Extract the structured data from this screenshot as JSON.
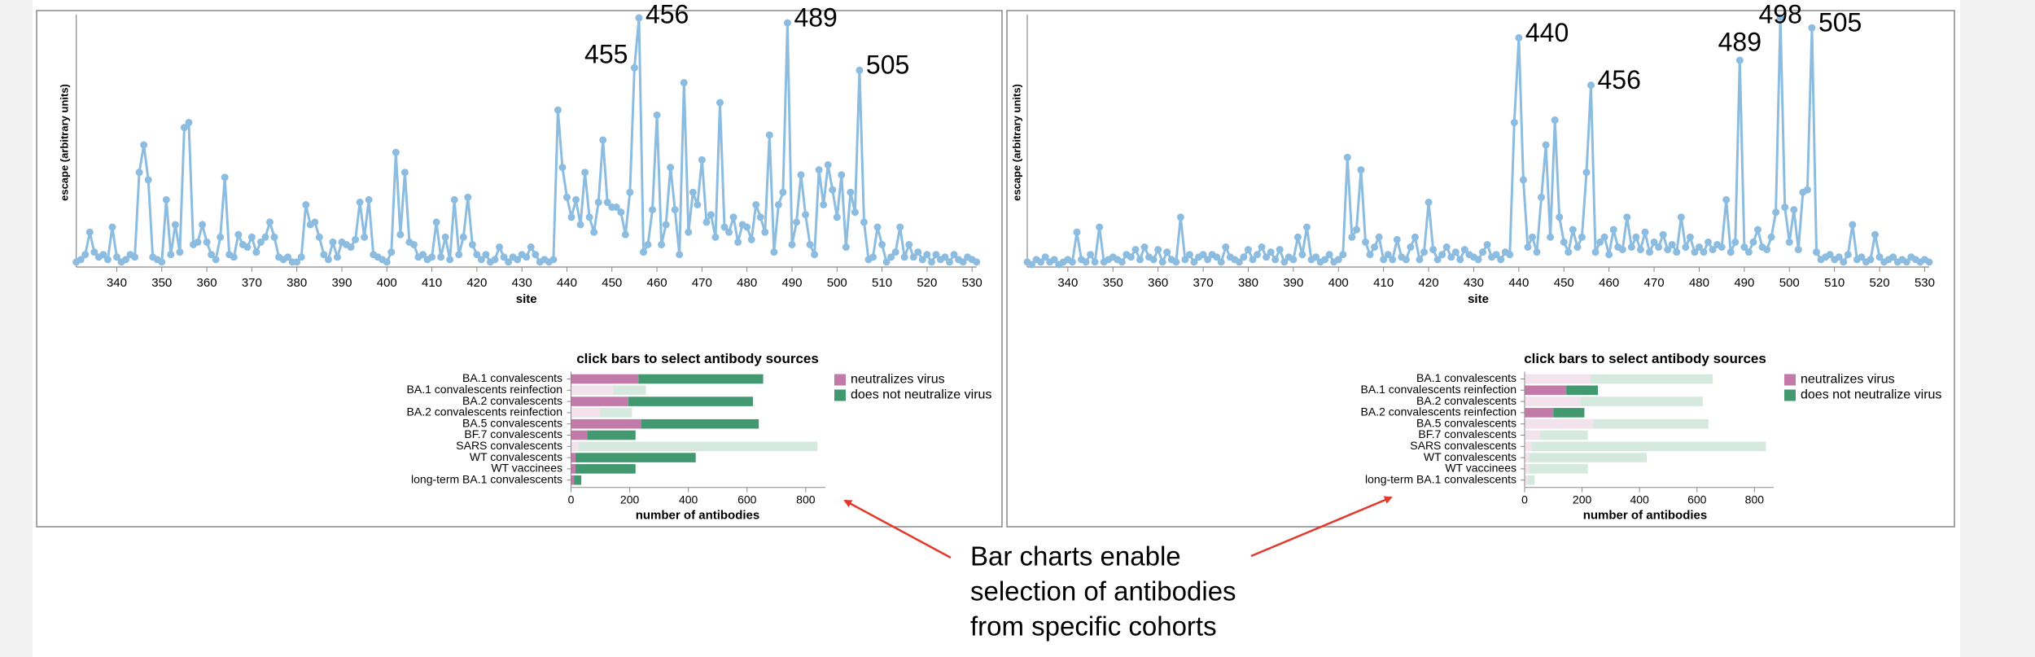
{
  "chart_data": [
    {
      "type": "line",
      "y_label": "escape (arbitrary units)",
      "x_label": "site",
      "color": "#8cbde0",
      "xlim": [
        331,
        531
      ],
      "ylim": [
        0,
        1
      ],
      "xticks": [
        340,
        350,
        360,
        370,
        380,
        390,
        400,
        410,
        420,
        430,
        440,
        450,
        460,
        470,
        480,
        490,
        500,
        510,
        520,
        530
      ],
      "peak_labels": [
        455,
        456,
        489,
        505
      ],
      "x": [
        331,
        332,
        333,
        334,
        335,
        336,
        337,
        338,
        339,
        340,
        341,
        342,
        343,
        344,
        345,
        346,
        347,
        348,
        349,
        350,
        351,
        352,
        353,
        354,
        355,
        356,
        357,
        358,
        359,
        360,
        361,
        362,
        363,
        364,
        365,
        366,
        367,
        368,
        369,
        370,
        371,
        372,
        373,
        374,
        375,
        376,
        377,
        378,
        379,
        380,
        381,
        382,
        383,
        384,
        385,
        386,
        387,
        388,
        389,
        390,
        391,
        392,
        393,
        394,
        395,
        396,
        397,
        398,
        399,
        400,
        401,
        402,
        403,
        404,
        405,
        406,
        407,
        408,
        409,
        410,
        411,
        412,
        413,
        414,
        415,
        416,
        417,
        418,
        419,
        420,
        421,
        422,
        423,
        424,
        425,
        426,
        427,
        428,
        429,
        430,
        431,
        432,
        433,
        434,
        435,
        436,
        437,
        438,
        439,
        440,
        441,
        442,
        443,
        444,
        445,
        446,
        447,
        448,
        449,
        450,
        451,
        452,
        453,
        454,
        455,
        456,
        457,
        458,
        459,
        460,
        461,
        462,
        463,
        464,
        465,
        466,
        467,
        468,
        469,
        470,
        471,
        472,
        473,
        474,
        475,
        476,
        477,
        478,
        479,
        480,
        481,
        482,
        483,
        484,
        485,
        486,
        487,
        488,
        489,
        490,
        491,
        492,
        493,
        494,
        495,
        496,
        497,
        498,
        499,
        500,
        501,
        502,
        503,
        504,
        505,
        506,
        507,
        508,
        509,
        510,
        511,
        512,
        513,
        514,
        515,
        516,
        517,
        518,
        519,
        520,
        521,
        522,
        523,
        524,
        525,
        526,
        527,
        528,
        529,
        530,
        531
      ],
      "values": [
        0.02,
        0.03,
        0.05,
        0.14,
        0.06,
        0.04,
        0.05,
        0.03,
        0.16,
        0.04,
        0.02,
        0.03,
        0.05,
        0.04,
        0.38,
        0.49,
        0.35,
        0.04,
        0.03,
        0.02,
        0.27,
        0.05,
        0.17,
        0.06,
        0.56,
        0.58,
        0.09,
        0.1,
        0.17,
        0.1,
        0.05,
        0.03,
        0.12,
        0.36,
        0.05,
        0.04,
        0.13,
        0.09,
        0.08,
        0.12,
        0.06,
        0.1,
        0.12,
        0.18,
        0.12,
        0.04,
        0.03,
        0.04,
        0.02,
        0.02,
        0.04,
        0.25,
        0.17,
        0.18,
        0.12,
        0.05,
        0.03,
        0.1,
        0.04,
        0.1,
        0.09,
        0.08,
        0.11,
        0.26,
        0.12,
        0.27,
        0.05,
        0.04,
        0.03,
        0.02,
        0.06,
        0.46,
        0.13,
        0.38,
        0.1,
        0.09,
        0.04,
        0.05,
        0.03,
        0.04,
        0.18,
        0.04,
        0.12,
        0.03,
        0.27,
        0.05,
        0.12,
        0.28,
        0.09,
        0.05,
        0.03,
        0.05,
        0.02,
        0.03,
        0.08,
        0.04,
        0.02,
        0.04,
        0.03,
        0.05,
        0.04,
        0.08,
        0.05,
        0.02,
        0.03,
        0.02,
        0.03,
        0.63,
        0.4,
        0.28,
        0.2,
        0.27,
        0.17,
        0.38,
        0.2,
        0.14,
        0.26,
        0.51,
        0.26,
        0.24,
        0.24,
        0.22,
        0.13,
        0.3,
        0.8,
        1.0,
        0.06,
        0.09,
        0.23,
        0.61,
        0.09,
        0.17,
        0.4,
        0.23,
        0.05,
        0.74,
        0.14,
        0.3,
        0.25,
        0.43,
        0.18,
        0.21,
        0.12,
        0.66,
        0.16,
        0.14,
        0.2,
        0.1,
        0.17,
        0.16,
        0.11,
        0.25,
        0.2,
        0.14,
        0.53,
        0.06,
        0.25,
        0.3,
        0.98,
        0.09,
        0.18,
        0.37,
        0.21,
        0.09,
        0.05,
        0.39,
        0.25,
        0.41,
        0.31,
        0.2,
        0.37,
        0.08,
        0.3,
        0.22,
        0.79,
        0.18,
        0.03,
        0.04,
        0.16,
        0.09,
        0.02,
        0.04,
        0.06,
        0.16,
        0.04,
        0.09,
        0.04,
        0.06,
        0.03,
        0.05,
        0.02,
        0.05,
        0.03,
        0.04,
        0.02,
        0.05,
        0.03,
        0.02,
        0.04,
        0.03,
        0.02
      ]
    },
    {
      "type": "hbar_stacked",
      "title": "click bars to select antibody sources",
      "x_label": "number of antibodies",
      "xlim": [
        0,
        867
      ],
      "xticks": [
        0,
        200,
        400,
        600,
        800
      ],
      "categories": [
        "BA.1 convalescents",
        "BA.1 convalescents reinfection",
        "BA.2 convalescents",
        "BA.2 convalescents reinfection",
        "BA.5 convalescents",
        "BF.7 convalescents",
        "SARS convalescents",
        "WT convalescents",
        "WT vaccinees",
        "long-term BA.1 convalescents"
      ],
      "selected": [
        true,
        false,
        true,
        false,
        true,
        true,
        false,
        true,
        true,
        true
      ],
      "series": [
        {
          "name": "neutralizes virus",
          "color": "#c27ba9",
          "values": [
            230,
            145,
            195,
            100,
            240,
            55,
            25,
            15,
            15,
            10
          ]
        },
        {
          "name": "does not neutralize virus",
          "color": "#42996f",
          "values": [
            425,
            110,
            425,
            108,
            400,
            165,
            815,
            410,
            205,
            25
          ]
        }
      ]
    },
    {
      "type": "line",
      "y_label": "escape (arbitrary units)",
      "x_label": "site",
      "color": "#8cbde0",
      "xlim": [
        331,
        531
      ],
      "ylim": [
        0,
        1
      ],
      "xticks": [
        340,
        350,
        360,
        370,
        380,
        390,
        400,
        410,
        420,
        430,
        440,
        450,
        460,
        470,
        480,
        490,
        500,
        510,
        520,
        530
      ],
      "peak_labels": [
        440,
        456,
        489,
        498,
        505
      ],
      "x": [
        331,
        332,
        333,
        334,
        335,
        336,
        337,
        338,
        339,
        340,
        341,
        342,
        343,
        344,
        345,
        346,
        347,
        348,
        349,
        350,
        351,
        352,
        353,
        354,
        355,
        356,
        357,
        358,
        359,
        360,
        361,
        362,
        363,
        364,
        365,
        366,
        367,
        368,
        369,
        370,
        371,
        372,
        373,
        374,
        375,
        376,
        377,
        378,
        379,
        380,
        381,
        382,
        383,
        384,
        385,
        386,
        387,
        388,
        389,
        390,
        391,
        392,
        393,
        394,
        395,
        396,
        397,
        398,
        399,
        400,
        401,
        402,
        403,
        404,
        405,
        406,
        407,
        408,
        409,
        410,
        411,
        412,
        413,
        414,
        415,
        416,
        417,
        418,
        419,
        420,
        421,
        422,
        423,
        424,
        425,
        426,
        427,
        428,
        429,
        430,
        431,
        432,
        433,
        434,
        435,
        436,
        437,
        438,
        439,
        440,
        441,
        442,
        443,
        444,
        445,
        446,
        447,
        448,
        449,
        450,
        451,
        452,
        453,
        454,
        455,
        456,
        457,
        458,
        459,
        460,
        461,
        462,
        463,
        464,
        465,
        466,
        467,
        468,
        469,
        470,
        471,
        472,
        473,
        474,
        475,
        476,
        477,
        478,
        479,
        480,
        481,
        482,
        483,
        484,
        485,
        486,
        487,
        488,
        489,
        490,
        491,
        492,
        493,
        494,
        495,
        496,
        497,
        498,
        499,
        500,
        501,
        502,
        503,
        504,
        505,
        506,
        507,
        508,
        509,
        510,
        511,
        512,
        513,
        514,
        515,
        516,
        517,
        518,
        519,
        520,
        521,
        522,
        523,
        524,
        525,
        526,
        527,
        528,
        529,
        530,
        531
      ],
      "values": [
        0.02,
        0.01,
        0.03,
        0.02,
        0.04,
        0.02,
        0.03,
        0.01,
        0.02,
        0.03,
        0.02,
        0.14,
        0.03,
        0.02,
        0.05,
        0.02,
        0.16,
        0.02,
        0.03,
        0.04,
        0.03,
        0.02,
        0.05,
        0.04,
        0.07,
        0.03,
        0.08,
        0.04,
        0.03,
        0.07,
        0.02,
        0.06,
        0.03,
        0.02,
        0.2,
        0.03,
        0.05,
        0.02,
        0.04,
        0.05,
        0.03,
        0.05,
        0.04,
        0.02,
        0.08,
        0.04,
        0.03,
        0.02,
        0.04,
        0.07,
        0.03,
        0.05,
        0.08,
        0.04,
        0.06,
        0.03,
        0.07,
        0.02,
        0.04,
        0.03,
        0.12,
        0.05,
        0.16,
        0.03,
        0.04,
        0.02,
        0.03,
        0.05,
        0.02,
        0.03,
        0.05,
        0.44,
        0.12,
        0.15,
        0.39,
        0.1,
        0.05,
        0.08,
        0.12,
        0.03,
        0.05,
        0.03,
        0.11,
        0.04,
        0.03,
        0.08,
        0.12,
        0.03,
        0.06,
        0.26,
        0.07,
        0.03,
        0.05,
        0.08,
        0.04,
        0.06,
        0.03,
        0.07,
        0.05,
        0.04,
        0.03,
        0.06,
        0.09,
        0.04,
        0.05,
        0.03,
        0.06,
        0.05,
        0.58,
        0.92,
        0.35,
        0.08,
        0.12,
        0.06,
        0.28,
        0.49,
        0.12,
        0.59,
        0.2,
        0.1,
        0.06,
        0.15,
        0.08,
        0.12,
        0.38,
        0.73,
        0.06,
        0.1,
        0.12,
        0.05,
        0.15,
        0.08,
        0.07,
        0.2,
        0.08,
        0.12,
        0.07,
        0.14,
        0.06,
        0.1,
        0.08,
        0.13,
        0.07,
        0.09,
        0.06,
        0.2,
        0.08,
        0.12,
        0.06,
        0.08,
        0.06,
        0.1,
        0.07,
        0.09,
        0.08,
        0.27,
        0.06,
        0.1,
        0.83,
        0.08,
        0.06,
        0.1,
        0.15,
        0.08,
        0.07,
        0.12,
        0.22,
        1.0,
        0.24,
        0.1,
        0.23,
        0.07,
        0.3,
        0.31,
        0.96,
        0.06,
        0.03,
        0.04,
        0.05,
        0.03,
        0.04,
        0.02,
        0.05,
        0.17,
        0.03,
        0.04,
        0.02,
        0.03,
        0.13,
        0.04,
        0.02,
        0.03,
        0.04,
        0.02,
        0.03,
        0.02,
        0.04,
        0.03,
        0.02,
        0.03,
        0.02
      ]
    },
    {
      "type": "hbar_stacked",
      "title": "click bars to select antibody sources",
      "x_label": "number of antibodies",
      "xlim": [
        0,
        867
      ],
      "xticks": [
        0,
        200,
        400,
        600,
        800
      ],
      "categories": [
        "BA.1 convalescents",
        "BA.1 convalescents reinfection",
        "BA.2 convalescents",
        "BA.2 convalescents reinfection",
        "BA.5 convalescents",
        "BF.7 convalescents",
        "SARS convalescents",
        "WT convalescents",
        "WT vaccinees",
        "long-term BA.1 convalescents"
      ],
      "selected": [
        false,
        true,
        false,
        true,
        false,
        false,
        false,
        false,
        false,
        false
      ],
      "series": [
        {
          "name": "neutralizes virus",
          "color": "#c27ba9",
          "values": [
            230,
            145,
            195,
            100,
            240,
            55,
            25,
            15,
            15,
            10
          ]
        },
        {
          "name": "does not neutralize virus",
          "color": "#42996f",
          "values": [
            425,
            110,
            425,
            108,
            400,
            165,
            815,
            410,
            205,
            25
          ]
        }
      ]
    }
  ],
  "annotation": {
    "lines": [
      "Bar charts enable",
      "selection of antibodies",
      "from specific cohorts"
    ],
    "color": "#e3392c"
  }
}
